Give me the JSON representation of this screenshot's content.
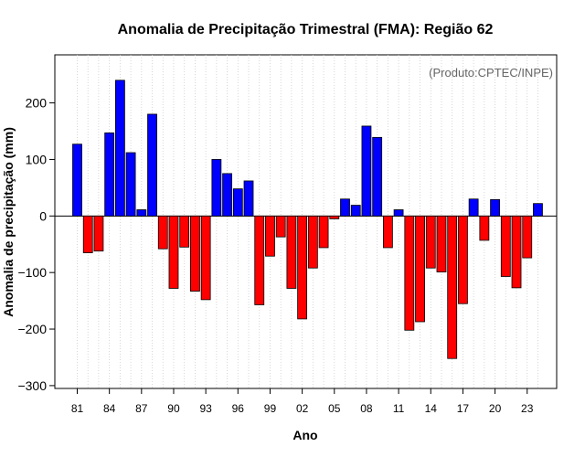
{
  "chart_data": {
    "type": "bar",
    "title": "Anomalia de Precipitação Trimestral (FMA): Região 62",
    "subtitle": "(Produto:CPTEC/INPE)",
    "xlabel": "Ano",
    "ylabel": "Anomalia de precipitação (mm)",
    "ylim": [
      -305,
      285
    ],
    "yticks": [
      -300,
      -200,
      -100,
      0,
      100,
      200
    ],
    "grid": true,
    "positive_color": "#0000ff",
    "negative_color": "#ff0000",
    "years": [
      1981,
      1982,
      1983,
      1984,
      1985,
      1986,
      1987,
      1988,
      1989,
      1990,
      1991,
      1992,
      1993,
      1994,
      1995,
      1996,
      1997,
      1998,
      1999,
      2000,
      2001,
      2002,
      2003,
      2004,
      2005,
      2006,
      2007,
      2008,
      2009,
      2010,
      2011,
      2012,
      2013,
      2014,
      2015,
      2016,
      2017,
      2018,
      2019,
      2020,
      2021,
      2022,
      2023,
      2024
    ],
    "values": [
      127,
      -65,
      -62,
      147,
      240,
      112,
      11,
      180,
      -58,
      -128,
      -55,
      -133,
      -148,
      100,
      75,
      48,
      62,
      -157,
      -71,
      -37,
      -128,
      -182,
      -92,
      -56,
      -5,
      30,
      19,
      159,
      139,
      -56,
      11,
      -202,
      -187,
      -92,
      -99,
      -252,
      -155,
      30,
      -43,
      29,
      -107,
      -127,
      -74,
      22
    ],
    "xtick_labels": [
      "81",
      "84",
      "87",
      "90",
      "93",
      "96",
      "99",
      "02",
      "05",
      "08",
      "11",
      "14",
      "17",
      "20",
      "23"
    ],
    "xtick_years": [
      1981,
      1984,
      1987,
      1990,
      1993,
      1996,
      1999,
      2002,
      2005,
      2008,
      2011,
      2014,
      2017,
      2020,
      2023
    ]
  }
}
